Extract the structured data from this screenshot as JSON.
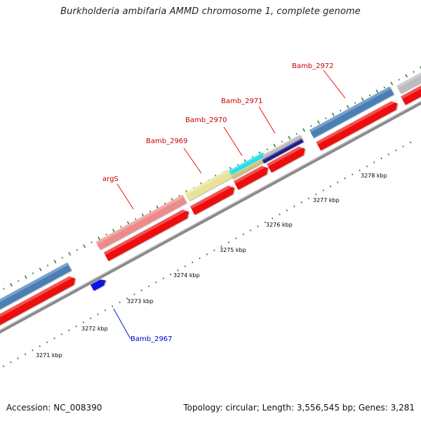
{
  "title": "Burkholderia ambifaria AMMD chromosome 1, complete genome",
  "footer": {
    "accession": "Accession: NC_008390",
    "summary": "Topology: circular; Length: 3,556,545 bp; Genes: 3,281"
  },
  "scale_labels": [
    "3271 kbp",
    "3272 kbp",
    "3273 kbp",
    "3274 kbp",
    "3275 kbp",
    "3276 kbp",
    "3277 kbp",
    "3278 kbp"
  ],
  "gene_labels": [
    {
      "text": "Bamb_2972",
      "color": "#cc0000"
    },
    {
      "text": "Bamb_2971",
      "color": "#cc0000"
    },
    {
      "text": "Bamb_2970",
      "color": "#cc0000"
    },
    {
      "text": "Bamb_2969",
      "color": "#cc0000"
    },
    {
      "text": "argS",
      "color": "#cc0000"
    },
    {
      "text": "Bamb_2967",
      "color": "#0000cc"
    }
  ],
  "colors": {
    "backbone": "#8a8a8a",
    "cds_red": "#ee1111",
    "steelblue": "#4a7fb5",
    "salmon": "#ee8a8a",
    "khaki": "#e8e398",
    "cyan": "#22e0f0",
    "olive": "#c9c27a",
    "navy": "#1a1a8c",
    "silver": "#bcbcbc",
    "blue": "#0a14e0",
    "tick_green": "#2a8a2a"
  }
}
